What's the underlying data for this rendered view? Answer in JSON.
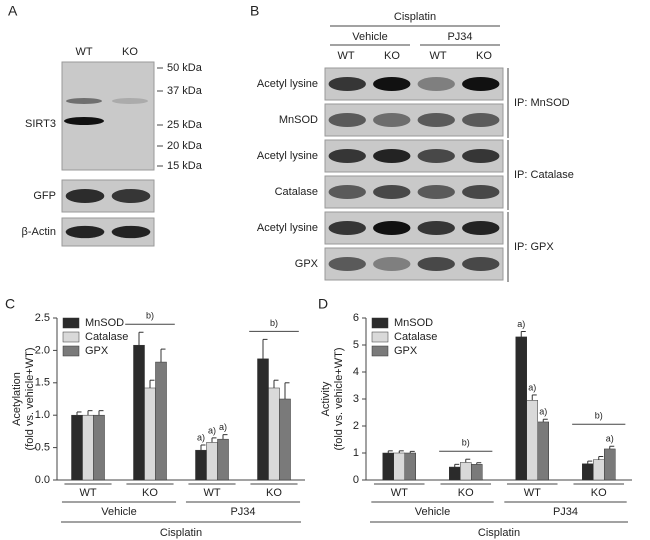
{
  "blots": {
    "A": {
      "label": "A",
      "lanes": [
        "WT",
        "KO"
      ],
      "rows": [
        "SIRT3",
        "GFP",
        "β-Actin"
      ],
      "markers": [
        "50 kDa",
        "37 kDa",
        "25 kDa",
        "20 kDa",
        "15 kDa"
      ]
    },
    "B": {
      "label": "B",
      "title": "Cisplatin",
      "groups": [
        "Vehicle",
        "PJ34"
      ],
      "lanes": [
        "WT",
        "KO",
        "WT",
        "KO"
      ],
      "rows": [
        "Acetyl lysine",
        "MnSOD",
        "Acetyl lysine",
        "Catalase",
        "Acetyl lysine",
        "GPX"
      ],
      "ip": [
        "IP: MnSOD",
        "IP: Catalase",
        "IP: GPX"
      ]
    }
  },
  "chart_data": [
    {
      "type": "bar",
      "panel": "C",
      "ylabel": [
        "Acetylation",
        "(fold vs. vehicle+WT)"
      ],
      "categories": [
        "WT",
        "KO",
        "WT",
        "KO"
      ],
      "group_labels": [
        "Vehicle",
        "PJ34"
      ],
      "group_title": "Cisplatin",
      "ylim": [
        0,
        2.5
      ],
      "yticks": [
        {
          "value": 0,
          "label": "0.0"
        },
        0.5,
        {
          "value": 1,
          "label": "1.0"
        },
        1.5,
        {
          "value": 2,
          "label": "2.0"
        },
        2.5
      ],
      "group_annotations": [
        null,
        "b)",
        null,
        "b)"
      ],
      "legend": "top-left",
      "series": [
        {
          "name": "MnSOD",
          "color": "#2b2b2b",
          "values": [
            1.0,
            2.08,
            0.46,
            1.87
          ],
          "errors": [
            0.05,
            0.2,
            0.08,
            0.3
          ],
          "labels": [
            null,
            null,
            "a)",
            null
          ]
        },
        {
          "name": "Catalase",
          "color": "#d9d9d9",
          "values": [
            1.0,
            1.42,
            0.58,
            1.42
          ],
          "errors": [
            0.07,
            0.12,
            0.07,
            0.12
          ],
          "labels": [
            null,
            null,
            "a)",
            null
          ]
        },
        {
          "name": "GPX",
          "color": "#7a7a7a",
          "values": [
            1.0,
            1.82,
            0.63,
            1.25
          ],
          "errors": [
            0.07,
            0.2,
            0.07,
            0.25
          ],
          "labels": [
            null,
            null,
            "a)",
            null
          ]
        }
      ]
    },
    {
      "type": "bar",
      "panel": "D",
      "ylabel": [
        "Activity",
        "(fold vs. vehicle+WT)"
      ],
      "categories": [
        "WT",
        "KO",
        "WT",
        "KO"
      ],
      "group_labels": [
        "Vehicle",
        "PJ34"
      ],
      "group_title": "Cisplatin",
      "ylim": [
        0,
        6
      ],
      "yticks": [
        0,
        1,
        2,
        3,
        4,
        5,
        6
      ],
      "group_annotations": [
        null,
        "b)",
        null,
        "b)"
      ],
      "legend": "top-left",
      "series": [
        {
          "name": "MnSOD",
          "color": "#2b2b2b",
          "values": [
            1.0,
            0.48,
            5.3,
            0.6
          ],
          "errors": [
            0.08,
            0.1,
            0.2,
            0.1
          ],
          "labels": [
            null,
            null,
            "a)",
            null
          ]
        },
        {
          "name": "Catalase",
          "color": "#d9d9d9",
          "values": [
            1.0,
            0.65,
            2.95,
            0.75
          ],
          "errors": [
            0.08,
            0.12,
            0.2,
            0.12
          ],
          "labels": [
            null,
            null,
            "a)",
            null
          ]
        },
        {
          "name": "GPX",
          "color": "#7a7a7a",
          "values": [
            1.0,
            0.58,
            2.15,
            1.15
          ],
          "errors": [
            0.06,
            0.06,
            0.1,
            0.1
          ],
          "labels": [
            null,
            null,
            "a)",
            "a)"
          ]
        }
      ]
    }
  ]
}
